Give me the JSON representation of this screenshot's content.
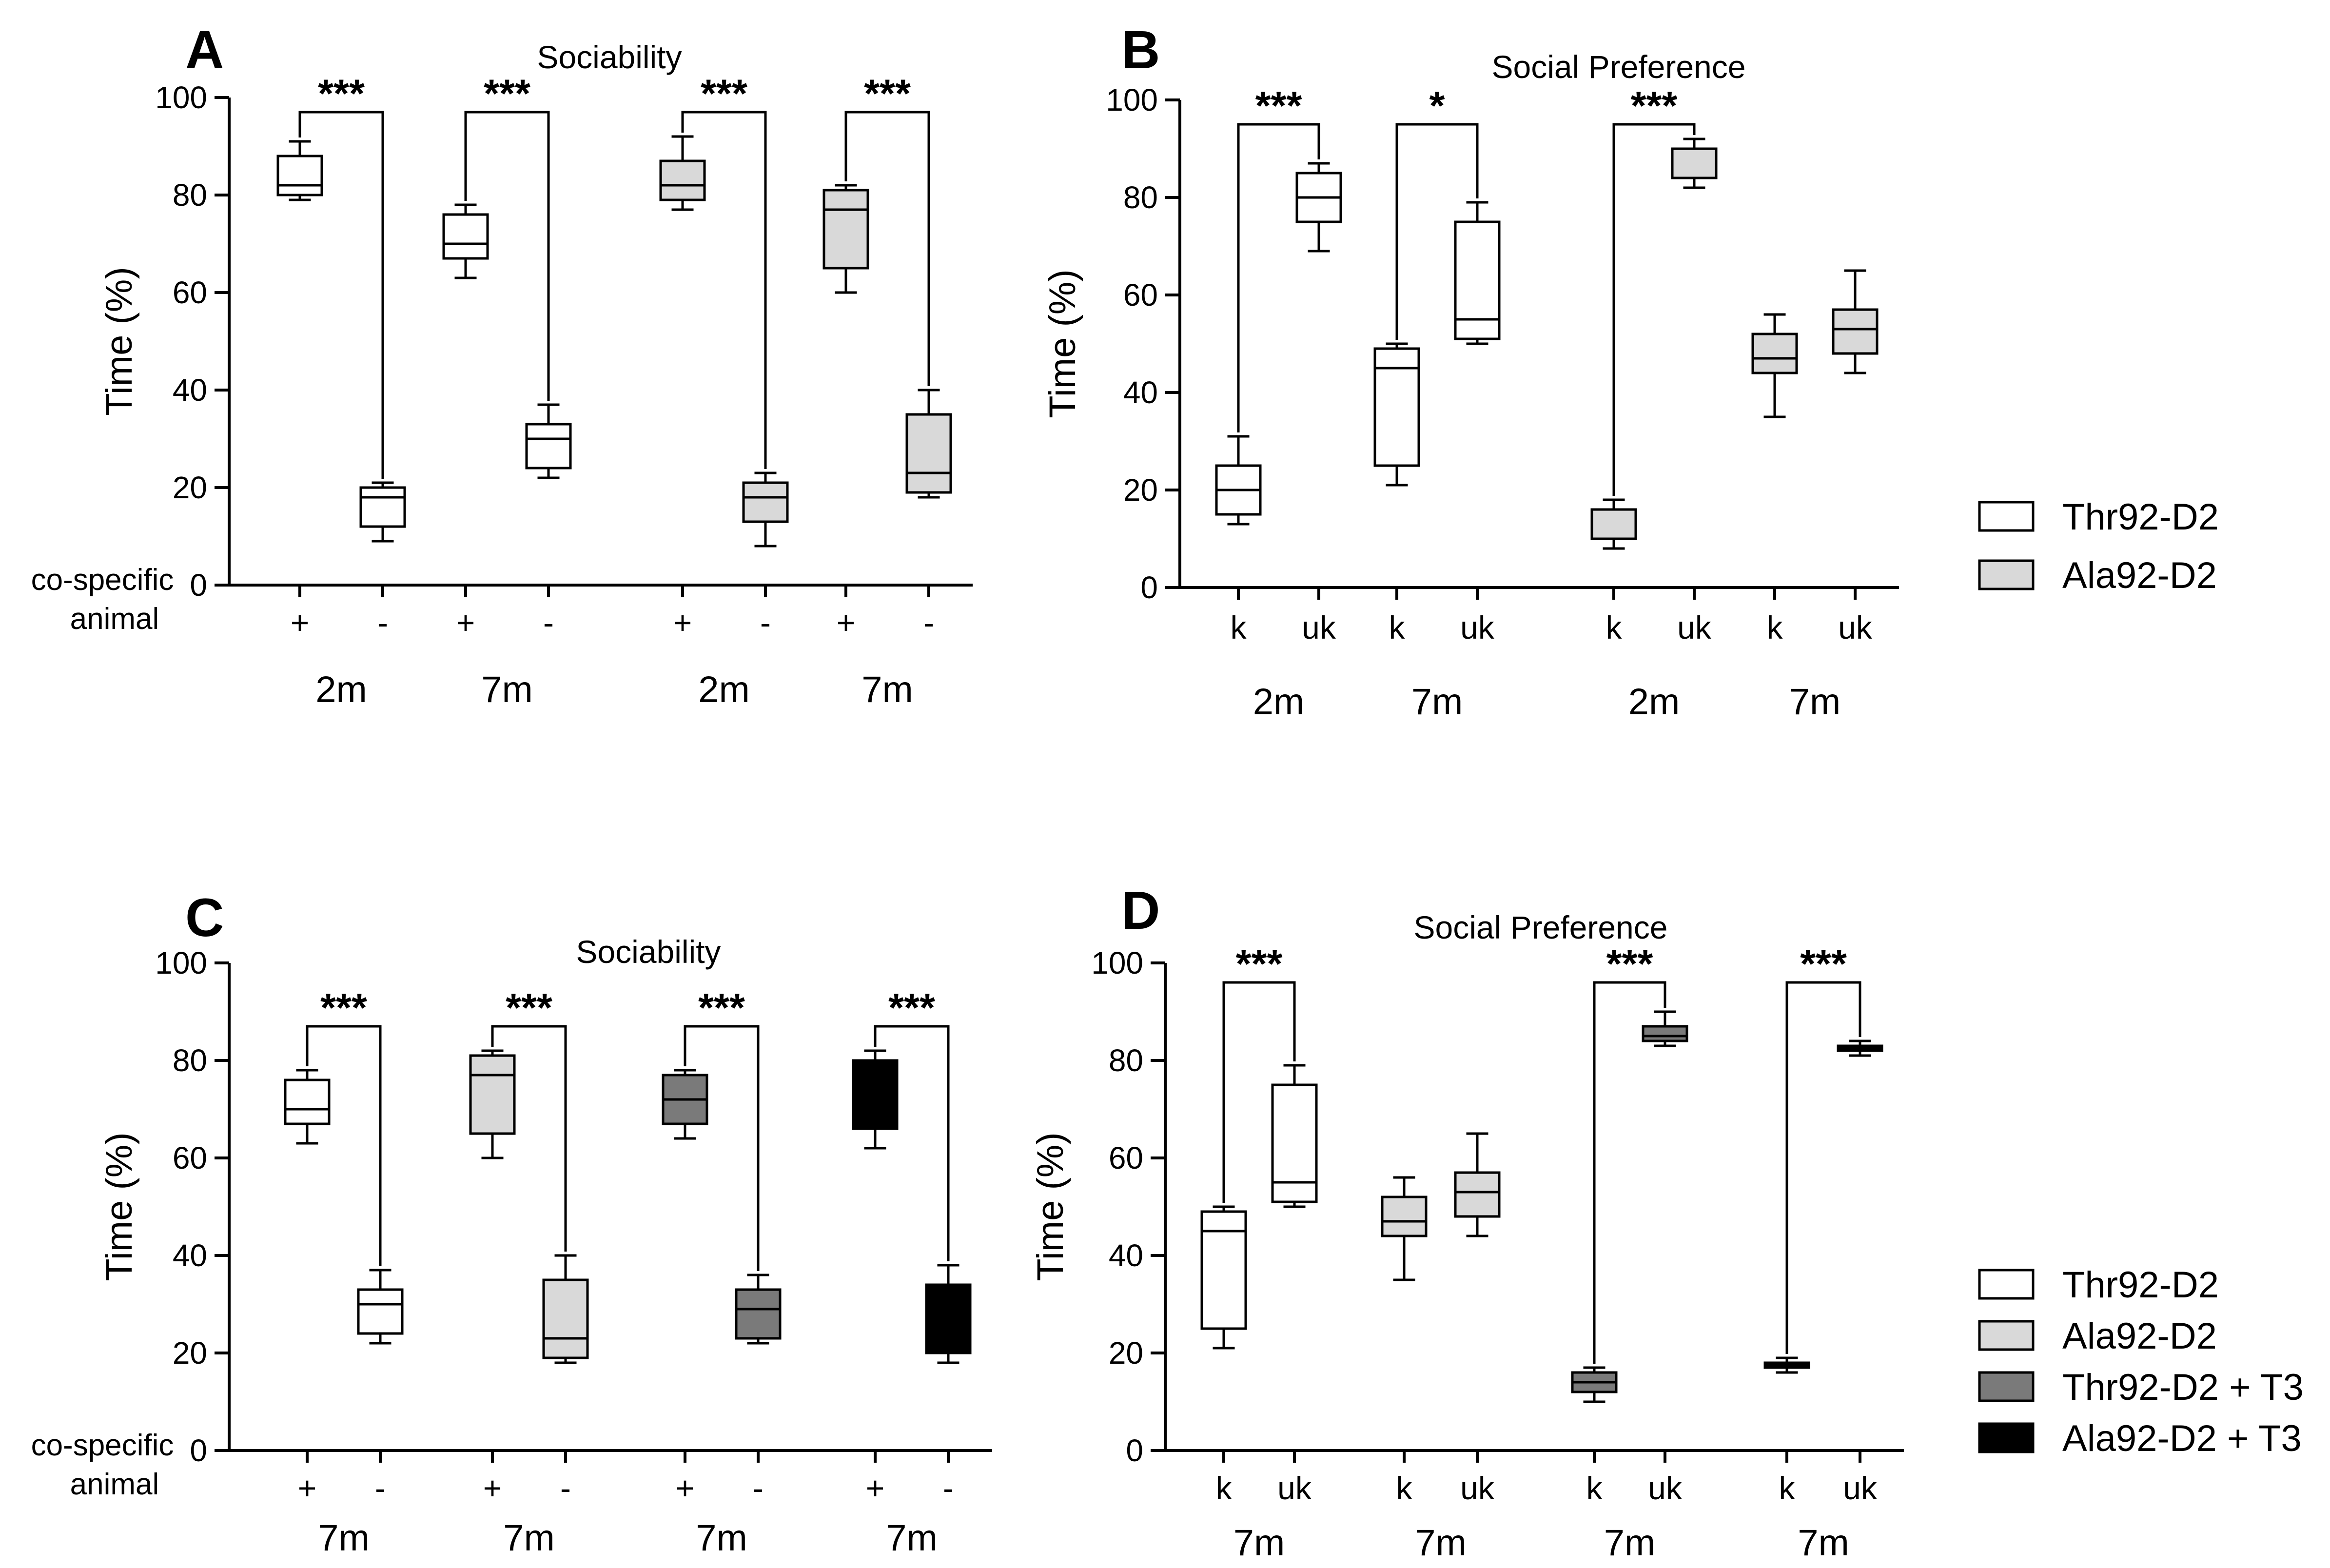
{
  "colors": {
    "thr92": "#ffffff",
    "ala92": "#d9d9d9",
    "thr92_t3": "#7a7a7a",
    "ala92_t3": "#000000",
    "stroke": "#000000"
  },
  "legend_top": {
    "entries": [
      {
        "label": "Thr92-D2",
        "color": "#ffffff"
      },
      {
        "label": "Ala92-D2",
        "color": "#d9d9d9"
      }
    ]
  },
  "legend_bottom": {
    "entries": [
      {
        "label": "Thr92-D2",
        "color": "#ffffff"
      },
      {
        "label": "Ala92-D2",
        "color": "#d9d9d9"
      },
      {
        "label": "Thr92-D2 + T3",
        "color": "#7a7a7a"
      },
      {
        "label": "Ala92-D2 + T3",
        "color": "#000000"
      }
    ]
  },
  "chart_data": [
    {
      "panel": "A",
      "type": "box",
      "title": "Sociability",
      "ylabel": "Time (%)",
      "ylim": [
        0,
        100
      ],
      "yticks": [
        0,
        20,
        40,
        60,
        80,
        100
      ],
      "side_label": [
        "co-specific",
        "animal"
      ],
      "boxes": [
        {
          "cat": "+",
          "color": "#ffffff",
          "min": 79,
          "q1": 80,
          "median": 82,
          "q3": 88,
          "max": 91
        },
        {
          "cat": "-",
          "color": "#ffffff",
          "min": 9,
          "q1": 12,
          "median": 18,
          "q3": 20,
          "max": 21
        },
        {
          "cat": "+",
          "color": "#ffffff",
          "min": 63,
          "q1": 67,
          "median": 70,
          "q3": 76,
          "max": 78
        },
        {
          "cat": "-",
          "color": "#ffffff",
          "min": 22,
          "q1": 24,
          "median": 30,
          "q3": 33,
          "max": 37
        },
        {
          "cat": "+",
          "color": "#d9d9d9",
          "min": 77,
          "q1": 79,
          "median": 82,
          "q3": 87,
          "max": 92
        },
        {
          "cat": "-",
          "color": "#d9d9d9",
          "min": 8,
          "q1": 13,
          "median": 18,
          "q3": 21,
          "max": 23
        },
        {
          "cat": "+",
          "color": "#d9d9d9",
          "min": 60,
          "q1": 65,
          "median": 77,
          "q3": 81,
          "max": 82
        },
        {
          "cat": "-",
          "color": "#d9d9d9",
          "min": 18,
          "q1": 19,
          "median": 23,
          "q3": 35,
          "max": 40
        }
      ],
      "groups": [
        {
          "label": "2m",
          "boxes": [
            0,
            1
          ]
        },
        {
          "label": "7m",
          "boxes": [
            2,
            3
          ]
        },
        {
          "label": "2m",
          "boxes": [
            4,
            5
          ]
        },
        {
          "label": "7m",
          "boxes": [
            6,
            7
          ]
        }
      ],
      "brackets": [
        {
          "from": 0,
          "to": 1,
          "y": 97,
          "label": "***"
        },
        {
          "from": 2,
          "to": 3,
          "y": 97,
          "label": "***"
        },
        {
          "from": 4,
          "to": 5,
          "y": 97,
          "label": "***"
        },
        {
          "from": 6,
          "to": 7,
          "y": 97,
          "label": "***"
        }
      ]
    },
    {
      "panel": "B",
      "type": "box",
      "title": "Social Preference",
      "ylabel": "Time (%)",
      "ylim": [
        0,
        100
      ],
      "yticks": [
        0,
        20,
        40,
        60,
        80,
        100
      ],
      "boxes": [
        {
          "cat": "k",
          "color": "#ffffff",
          "min": 13,
          "q1": 15,
          "median": 20,
          "q3": 25,
          "max": 31
        },
        {
          "cat": "uk",
          "color": "#ffffff",
          "min": 69,
          "q1": 75,
          "median": 80,
          "q3": 85,
          "max": 87
        },
        {
          "cat": "k",
          "color": "#ffffff",
          "min": 21,
          "q1": 25,
          "median": 45,
          "q3": 49,
          "max": 50
        },
        {
          "cat": "uk",
          "color": "#ffffff",
          "min": 50,
          "q1": 51,
          "median": 55,
          "q3": 75,
          "max": 79
        },
        {
          "cat": "k",
          "color": "#d9d9d9",
          "min": 8,
          "q1": 10,
          "median": 16,
          "q3": 16,
          "max": 18
        },
        {
          "cat": "uk",
          "color": "#d9d9d9",
          "min": 82,
          "q1": 84,
          "median": 84,
          "q3": 90,
          "max": 92
        },
        {
          "cat": "k",
          "color": "#d9d9d9",
          "min": 35,
          "q1": 44,
          "median": 47,
          "q3": 52,
          "max": 56
        },
        {
          "cat": "uk",
          "color": "#d9d9d9",
          "min": 44,
          "q1": 48,
          "median": 53,
          "q3": 57,
          "max": 65
        }
      ],
      "groups": [
        {
          "label": "2m",
          "boxes": [
            0,
            1
          ]
        },
        {
          "label": "7m",
          "boxes": [
            2,
            3
          ]
        },
        {
          "label": "2m",
          "boxes": [
            4,
            5
          ]
        },
        {
          "label": "7m",
          "boxes": [
            6,
            7
          ]
        }
      ],
      "brackets": [
        {
          "from": 0,
          "to": 1,
          "y": 95,
          "label": "***"
        },
        {
          "from": 2,
          "to": 3,
          "y": 95,
          "label": "*"
        },
        {
          "from": 4,
          "to": 5,
          "y": 95,
          "label": "***"
        }
      ]
    },
    {
      "panel": "C",
      "type": "box",
      "title": "Sociability",
      "ylabel": "Time (%)",
      "ylim": [
        0,
        100
      ],
      "yticks": [
        0,
        20,
        40,
        60,
        80,
        100
      ],
      "side_label": [
        "co-specific",
        "animal"
      ],
      "boxes": [
        {
          "cat": "+",
          "color": "#ffffff",
          "min": 63,
          "q1": 67,
          "median": 70,
          "q3": 76,
          "max": 78
        },
        {
          "cat": "-",
          "color": "#ffffff",
          "min": 22,
          "q1": 24,
          "median": 30,
          "q3": 33,
          "max": 37
        },
        {
          "cat": "+",
          "color": "#d9d9d9",
          "min": 60,
          "q1": 65,
          "median": 77,
          "q3": 81,
          "max": 82
        },
        {
          "cat": "-",
          "color": "#d9d9d9",
          "min": 18,
          "q1": 19,
          "median": 23,
          "q3": 35,
          "max": 40
        },
        {
          "cat": "+",
          "color": "#7a7a7a",
          "min": 64,
          "q1": 67,
          "median": 72,
          "q3": 77,
          "max": 78
        },
        {
          "cat": "-",
          "color": "#7a7a7a",
          "min": 22,
          "q1": 23,
          "median": 29,
          "q3": 33,
          "max": 36
        },
        {
          "cat": "+",
          "color": "#000000",
          "min": 62,
          "q1": 66,
          "median": 70,
          "q3": 80,
          "max": 82
        },
        {
          "cat": "-",
          "color": "#000000",
          "min": 18,
          "q1": 20,
          "median": 25,
          "q3": 34,
          "max": 38
        }
      ],
      "groups": [
        {
          "label": "7m",
          "boxes": [
            0,
            1
          ]
        },
        {
          "label": "7m",
          "boxes": [
            2,
            3
          ]
        },
        {
          "label": "7m",
          "boxes": [
            4,
            5
          ]
        },
        {
          "label": "7m",
          "boxes": [
            6,
            7
          ]
        }
      ],
      "brackets": [
        {
          "from": 0,
          "to": 1,
          "y": 87,
          "label": "***"
        },
        {
          "from": 2,
          "to": 3,
          "y": 87,
          "label": "***"
        },
        {
          "from": 4,
          "to": 5,
          "y": 87,
          "label": "***"
        },
        {
          "from": 6,
          "to": 7,
          "y": 87,
          "label": "***"
        }
      ]
    },
    {
      "panel": "D",
      "type": "box",
      "title": "Social Preference",
      "ylabel": "Time (%)",
      "ylim": [
        0,
        100
      ],
      "yticks": [
        0,
        20,
        40,
        60,
        80,
        100
      ],
      "boxes": [
        {
          "cat": "k",
          "color": "#ffffff",
          "min": 21,
          "q1": 25,
          "median": 45,
          "q3": 49,
          "max": 50
        },
        {
          "cat": "uk",
          "color": "#ffffff",
          "min": 50,
          "q1": 51,
          "median": 55,
          "q3": 75,
          "max": 79
        },
        {
          "cat": "k",
          "color": "#d9d9d9",
          "min": 35,
          "q1": 44,
          "median": 47,
          "q3": 52,
          "max": 56
        },
        {
          "cat": "uk",
          "color": "#d9d9d9",
          "min": 44,
          "q1": 48,
          "median": 53,
          "q3": 57,
          "max": 65
        },
        {
          "cat": "k",
          "color": "#7a7a7a",
          "min": 10,
          "q1": 12,
          "median": 14,
          "q3": 16,
          "max": 17
        },
        {
          "cat": "uk",
          "color": "#7a7a7a",
          "min": 83,
          "q1": 84,
          "median": 85,
          "q3": 87,
          "max": 90
        },
        {
          "cat": "k",
          "color": "#000000",
          "min": 16,
          "q1": 17,
          "median": 17,
          "q3": 18,
          "max": 19
        },
        {
          "cat": "uk",
          "color": "#000000",
          "min": 81,
          "q1": 82,
          "median": 82,
          "q3": 83,
          "max": 84
        }
      ],
      "groups": [
        {
          "label": "7m",
          "boxes": [
            0,
            1
          ]
        },
        {
          "label": "7m",
          "boxes": [
            2,
            3
          ]
        },
        {
          "label": "7m",
          "boxes": [
            4,
            5
          ]
        },
        {
          "label": "7m",
          "boxes": [
            6,
            7
          ]
        }
      ],
      "brackets": [
        {
          "from": 0,
          "to": 1,
          "y": 96,
          "label": "***"
        },
        {
          "from": 4,
          "to": 5,
          "y": 96,
          "label": "***"
        },
        {
          "from": 6,
          "to": 7,
          "y": 96,
          "label": "***"
        }
      ]
    }
  ]
}
